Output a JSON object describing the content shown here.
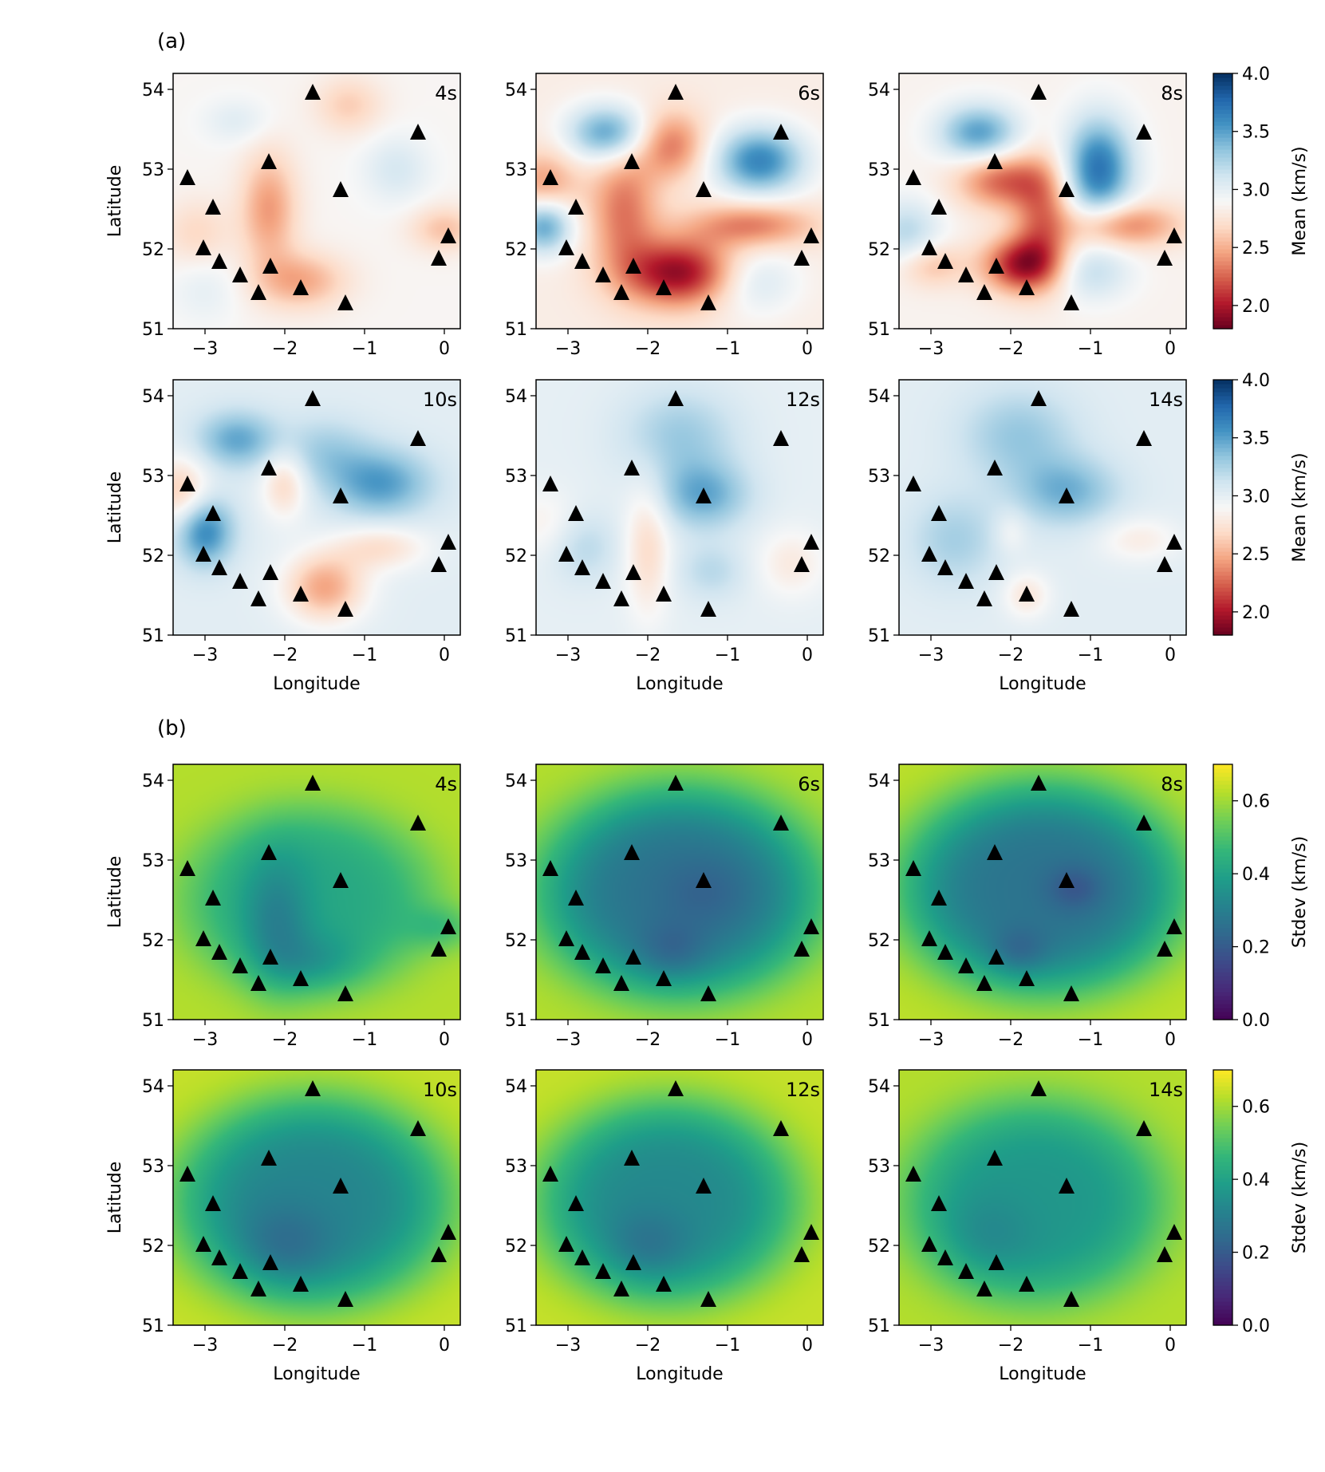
{
  "figure": {
    "panel_a_label": "(a)",
    "panel_b_label": "(b)"
  },
  "colors": {
    "triangle": "#000000",
    "rdbu_stops": [
      "#67001f",
      "#b2182b",
      "#d6604d",
      "#f4a582",
      "#fddbc7",
      "#f7f7f7",
      "#d1e5f0",
      "#92c5de",
      "#4393c3",
      "#2166ac",
      "#053061"
    ],
    "viridis_stops": [
      "#440154",
      "#482878",
      "#3e4989",
      "#31688e",
      "#26828e",
      "#1f9e89",
      "#35b779",
      "#6ece58",
      "#b5de2b",
      "#fde725"
    ]
  },
  "chart_data": {
    "type": "heatmap",
    "x_axis": {
      "label": "Longitude",
      "range": [
        -3.4,
        0.2
      ],
      "ticks": [
        -3,
        -2,
        -1,
        0
      ],
      "tick_labels": [
        "−3",
        "−2",
        "−1",
        "0"
      ]
    },
    "y_axis": {
      "label": "Latitude",
      "range": [
        51,
        54.2
      ],
      "ticks": [
        51,
        52,
        53,
        54
      ],
      "tick_labels": [
        "51",
        "52",
        "53",
        "54"
      ]
    },
    "stations": [
      {
        "lon": -1.65,
        "lat": 53.95
      },
      {
        "lon": -0.33,
        "lat": 53.45
      },
      {
        "lon": -2.2,
        "lat": 53.08
      },
      {
        "lon": -3.22,
        "lat": 52.88
      },
      {
        "lon": -1.3,
        "lat": 52.73
      },
      {
        "lon": -2.9,
        "lat": 52.51
      },
      {
        "lon": 0.05,
        "lat": 52.15
      },
      {
        "lon": -3.02,
        "lat": 52.0
      },
      {
        "lon": -0.07,
        "lat": 51.87
      },
      {
        "lon": -2.82,
        "lat": 51.83
      },
      {
        "lon": -2.18,
        "lat": 51.77
      },
      {
        "lon": -2.56,
        "lat": 51.66
      },
      {
        "lon": -1.8,
        "lat": 51.5
      },
      {
        "lon": -2.33,
        "lat": 51.44
      },
      {
        "lon": -1.24,
        "lat": 51.31
      }
    ],
    "groups": [
      {
        "id": "mean",
        "colorbar_label": "Mean (km/s)",
        "colormap": "RdBu",
        "vmin": 1.8,
        "vmax": 4.0,
        "colorbar_ticks": [
          2.0,
          2.5,
          3.0,
          3.5,
          4.0
        ],
        "colorbar_tick_labels": [
          "2.0",
          "2.5",
          "3.0",
          "3.5",
          "4.0"
        ],
        "panels": [
          {
            "period": "4s",
            "base": 2.88,
            "anomalies": [
              {
                "lon": -2.2,
                "lat": 52.5,
                "amp": -0.45,
                "sx": 0.25,
                "sy": 0.5
              },
              {
                "lon": -1.8,
                "lat": 51.6,
                "amp": -0.4,
                "sx": 0.4,
                "sy": 0.25
              },
              {
                "lon": -1.2,
                "lat": 53.8,
                "amp": -0.25,
                "sx": 0.3,
                "sy": 0.25
              },
              {
                "lon": 0.0,
                "lat": 52.25,
                "amp": -0.3,
                "sx": 0.3,
                "sy": 0.2
              },
              {
                "lon": -3.1,
                "lat": 52.2,
                "amp": -0.2,
                "sx": 0.3,
                "sy": 0.3
              },
              {
                "lon": -0.6,
                "lat": 53.0,
                "amp": 0.2,
                "sx": 0.3,
                "sy": 0.3
              },
              {
                "lon": -2.6,
                "lat": 53.6,
                "amp": 0.15,
                "sx": 0.3,
                "sy": 0.2
              },
              {
                "lon": -3.0,
                "lat": 51.5,
                "amp": 0.12,
                "sx": 0.3,
                "sy": 0.3
              }
            ]
          },
          {
            "period": "6s",
            "base": 2.82,
            "anomalies": [
              {
                "lon": -1.6,
                "lat": 51.7,
                "amp": -0.9,
                "sx": 0.5,
                "sy": 0.3
              },
              {
                "lon": -2.3,
                "lat": 52.5,
                "amp": -0.5,
                "sx": 0.3,
                "sy": 0.55
              },
              {
                "lon": -1.7,
                "lat": 53.3,
                "amp": -0.5,
                "sx": 0.3,
                "sy": 0.3
              },
              {
                "lon": -0.7,
                "lat": 52.3,
                "amp": -0.5,
                "sx": 0.55,
                "sy": 0.2
              },
              {
                "lon": -3.3,
                "lat": 52.8,
                "amp": -0.4,
                "sx": 0.3,
                "sy": 0.3
              },
              {
                "lon": -0.6,
                "lat": 53.1,
                "amp": 0.8,
                "sx": 0.4,
                "sy": 0.3
              },
              {
                "lon": -2.5,
                "lat": 53.45,
                "amp": 0.7,
                "sx": 0.35,
                "sy": 0.25
              },
              {
                "lon": -3.3,
                "lat": 52.3,
                "amp": 0.7,
                "sx": 0.25,
                "sy": 0.25
              },
              {
                "lon": -0.7,
                "lat": 51.6,
                "amp": 0.3,
                "sx": 0.4,
                "sy": 0.3
              }
            ]
          },
          {
            "period": "8s",
            "base": 2.86,
            "anomalies": [
              {
                "lon": -1.85,
                "lat": 51.8,
                "amp": -0.85,
                "sx": 0.35,
                "sy": 0.25
              },
              {
                "lon": -2.1,
                "lat": 52.85,
                "amp": -0.6,
                "sx": 0.4,
                "sy": 0.25
              },
              {
                "lon": -1.6,
                "lat": 52.4,
                "amp": -0.5,
                "sx": 0.25,
                "sy": 0.5
              },
              {
                "lon": -0.6,
                "lat": 52.3,
                "amp": -0.55,
                "sx": 0.5,
                "sy": 0.2
              },
              {
                "lon": -3.0,
                "lat": 51.8,
                "amp": -0.3,
                "sx": 0.3,
                "sy": 0.2
              },
              {
                "lon": -0.9,
                "lat": 53.0,
                "amp": 0.85,
                "sx": 0.3,
                "sy": 0.45
              },
              {
                "lon": -2.4,
                "lat": 53.45,
                "amp": 0.65,
                "sx": 0.35,
                "sy": 0.25
              },
              {
                "lon": -3.3,
                "lat": 52.2,
                "amp": 0.35,
                "sx": 0.3,
                "sy": 0.3
              },
              {
                "lon": -1.0,
                "lat": 51.7,
                "amp": 0.3,
                "sx": 0.35,
                "sy": 0.25
              }
            ]
          },
          {
            "period": "10s",
            "base": 3.02,
            "anomalies": [
              {
                "lon": -1.5,
                "lat": 51.6,
                "amp": -0.55,
                "sx": 0.35,
                "sy": 0.3
              },
              {
                "lon": -0.8,
                "lat": 52.1,
                "amp": -0.3,
                "sx": 0.4,
                "sy": 0.2
              },
              {
                "lon": -2.0,
                "lat": 52.9,
                "amp": -0.35,
                "sx": 0.2,
                "sy": 0.3
              },
              {
                "lon": -3.3,
                "lat": 52.8,
                "amp": -0.4,
                "sx": 0.25,
                "sy": 0.3
              },
              {
                "lon": -0.8,
                "lat": 52.9,
                "amp": 0.5,
                "sx": 0.45,
                "sy": 0.3
              },
              {
                "lon": -3.0,
                "lat": 52.3,
                "amp": 0.6,
                "sx": 0.25,
                "sy": 0.3
              },
              {
                "lon": -2.6,
                "lat": 53.45,
                "amp": 0.45,
                "sx": 0.35,
                "sy": 0.25
              },
              {
                "lon": -1.5,
                "lat": 53.3,
                "amp": 0.25,
                "sx": 0.4,
                "sy": 0.3
              }
            ]
          },
          {
            "period": "12s",
            "base": 3.0,
            "anomalies": [
              {
                "lon": -2.0,
                "lat": 52.1,
                "amp": -0.3,
                "sx": 0.2,
                "sy": 0.6
              },
              {
                "lon": -0.2,
                "lat": 51.9,
                "amp": -0.2,
                "sx": 0.3,
                "sy": 0.3
              },
              {
                "lon": -3.3,
                "lat": 52.4,
                "amp": -0.15,
                "sx": 0.3,
                "sy": 0.3
              },
              {
                "lon": -1.3,
                "lat": 52.75,
                "amp": 0.45,
                "sx": 0.4,
                "sy": 0.3
              },
              {
                "lon": -1.6,
                "lat": 53.5,
                "amp": 0.3,
                "sx": 0.5,
                "sy": 0.4
              },
              {
                "lon": -2.8,
                "lat": 52.1,
                "amp": 0.2,
                "sx": 0.3,
                "sy": 0.3
              },
              {
                "lon": -1.2,
                "lat": 51.8,
                "amp": 0.2,
                "sx": 0.3,
                "sy": 0.25
              }
            ]
          },
          {
            "period": "14s",
            "base": 3.02,
            "anomalies": [
              {
                "lon": -1.3,
                "lat": 52.8,
                "amp": 0.4,
                "sx": 0.45,
                "sy": 0.3
              },
              {
                "lon": -1.9,
                "lat": 53.5,
                "amp": 0.3,
                "sx": 0.5,
                "sy": 0.4
              },
              {
                "lon": -2.7,
                "lat": 52.2,
                "amp": 0.25,
                "sx": 0.4,
                "sy": 0.4
              },
              {
                "lon": -1.8,
                "lat": 51.5,
                "amp": -0.25,
                "sx": 0.2,
                "sy": 0.2
              },
              {
                "lon": -0.4,
                "lat": 52.2,
                "amp": -0.2,
                "sx": 0.35,
                "sy": 0.2
              },
              {
                "lon": -2.0,
                "lat": 52.3,
                "amp": -0.15,
                "sx": 0.15,
                "sy": 0.2
              }
            ]
          }
        ]
      },
      {
        "id": "stdev",
        "colorbar_label": "Stdev (km/s)",
        "colormap": "viridis",
        "vmin": 0.0,
        "vmax": 0.7,
        "colorbar_ticks": [
          0.0,
          0.2,
          0.4,
          0.6
        ],
        "colorbar_tick_labels": [
          "0.0",
          "0.2",
          "0.4",
          "0.6"
        ],
        "panels": [
          {
            "period": "4s",
            "center_lon": -1.7,
            "center_lat": 52.5,
            "rx": 1.55,
            "ry": 1.15,
            "edge": 0.62,
            "core": 0.42,
            "lows": [
              {
                "lon": -2.1,
                "lat": 52.2,
                "amp": -0.12,
                "sx": 0.3,
                "sy": 0.6
              },
              {
                "lon": -1.6,
                "lat": 51.7,
                "amp": -0.08,
                "sx": 0.4,
                "sy": 0.25
              },
              {
                "lon": 0.0,
                "lat": 52.15,
                "amp": -0.1,
                "sx": 0.3,
                "sy": 0.2
              }
            ]
          },
          {
            "period": "6s",
            "center_lon": -1.6,
            "center_lat": 52.6,
            "rx": 1.75,
            "ry": 1.3,
            "edge": 0.62,
            "core": 0.27,
            "lows": [
              {
                "lon": -1.7,
                "lat": 51.85,
                "amp": -0.07,
                "sx": 0.3,
                "sy": 0.25
              },
              {
                "lon": -1.3,
                "lat": 52.6,
                "amp": -0.05,
                "sx": 0.4,
                "sy": 0.3
              }
            ]
          },
          {
            "period": "8s",
            "center_lon": -1.6,
            "center_lat": 52.65,
            "rx": 1.75,
            "ry": 1.3,
            "edge": 0.63,
            "core": 0.27,
            "lows": [
              {
                "lon": -1.9,
                "lat": 51.85,
                "amp": -0.08,
                "sx": 0.25,
                "sy": 0.2
              },
              {
                "lon": -1.2,
                "lat": 52.65,
                "amp": -0.08,
                "sx": 0.25,
                "sy": 0.2
              }
            ]
          },
          {
            "period": "10s",
            "center_lon": -1.65,
            "center_lat": 52.55,
            "rx": 1.7,
            "ry": 1.3,
            "edge": 0.64,
            "core": 0.32,
            "lows": [
              {
                "lon": -2.0,
                "lat": 52.0,
                "amp": -0.08,
                "sx": 0.4,
                "sy": 0.35
              }
            ]
          },
          {
            "period": "12s",
            "center_lon": -1.75,
            "center_lat": 52.55,
            "rx": 1.6,
            "ry": 1.25,
            "edge": 0.64,
            "core": 0.33,
            "lows": [
              {
                "lon": -2.0,
                "lat": 52.0,
                "amp": -0.07,
                "sx": 0.35,
                "sy": 0.3
              }
            ]
          },
          {
            "period": "14s",
            "center_lon": -1.7,
            "center_lat": 52.55,
            "rx": 1.6,
            "ry": 1.25,
            "edge": 0.62,
            "core": 0.37,
            "lows": [
              {
                "lon": -2.3,
                "lat": 52.1,
                "amp": -0.05,
                "sx": 0.4,
                "sy": 0.35
              }
            ]
          }
        ]
      }
    ]
  }
}
